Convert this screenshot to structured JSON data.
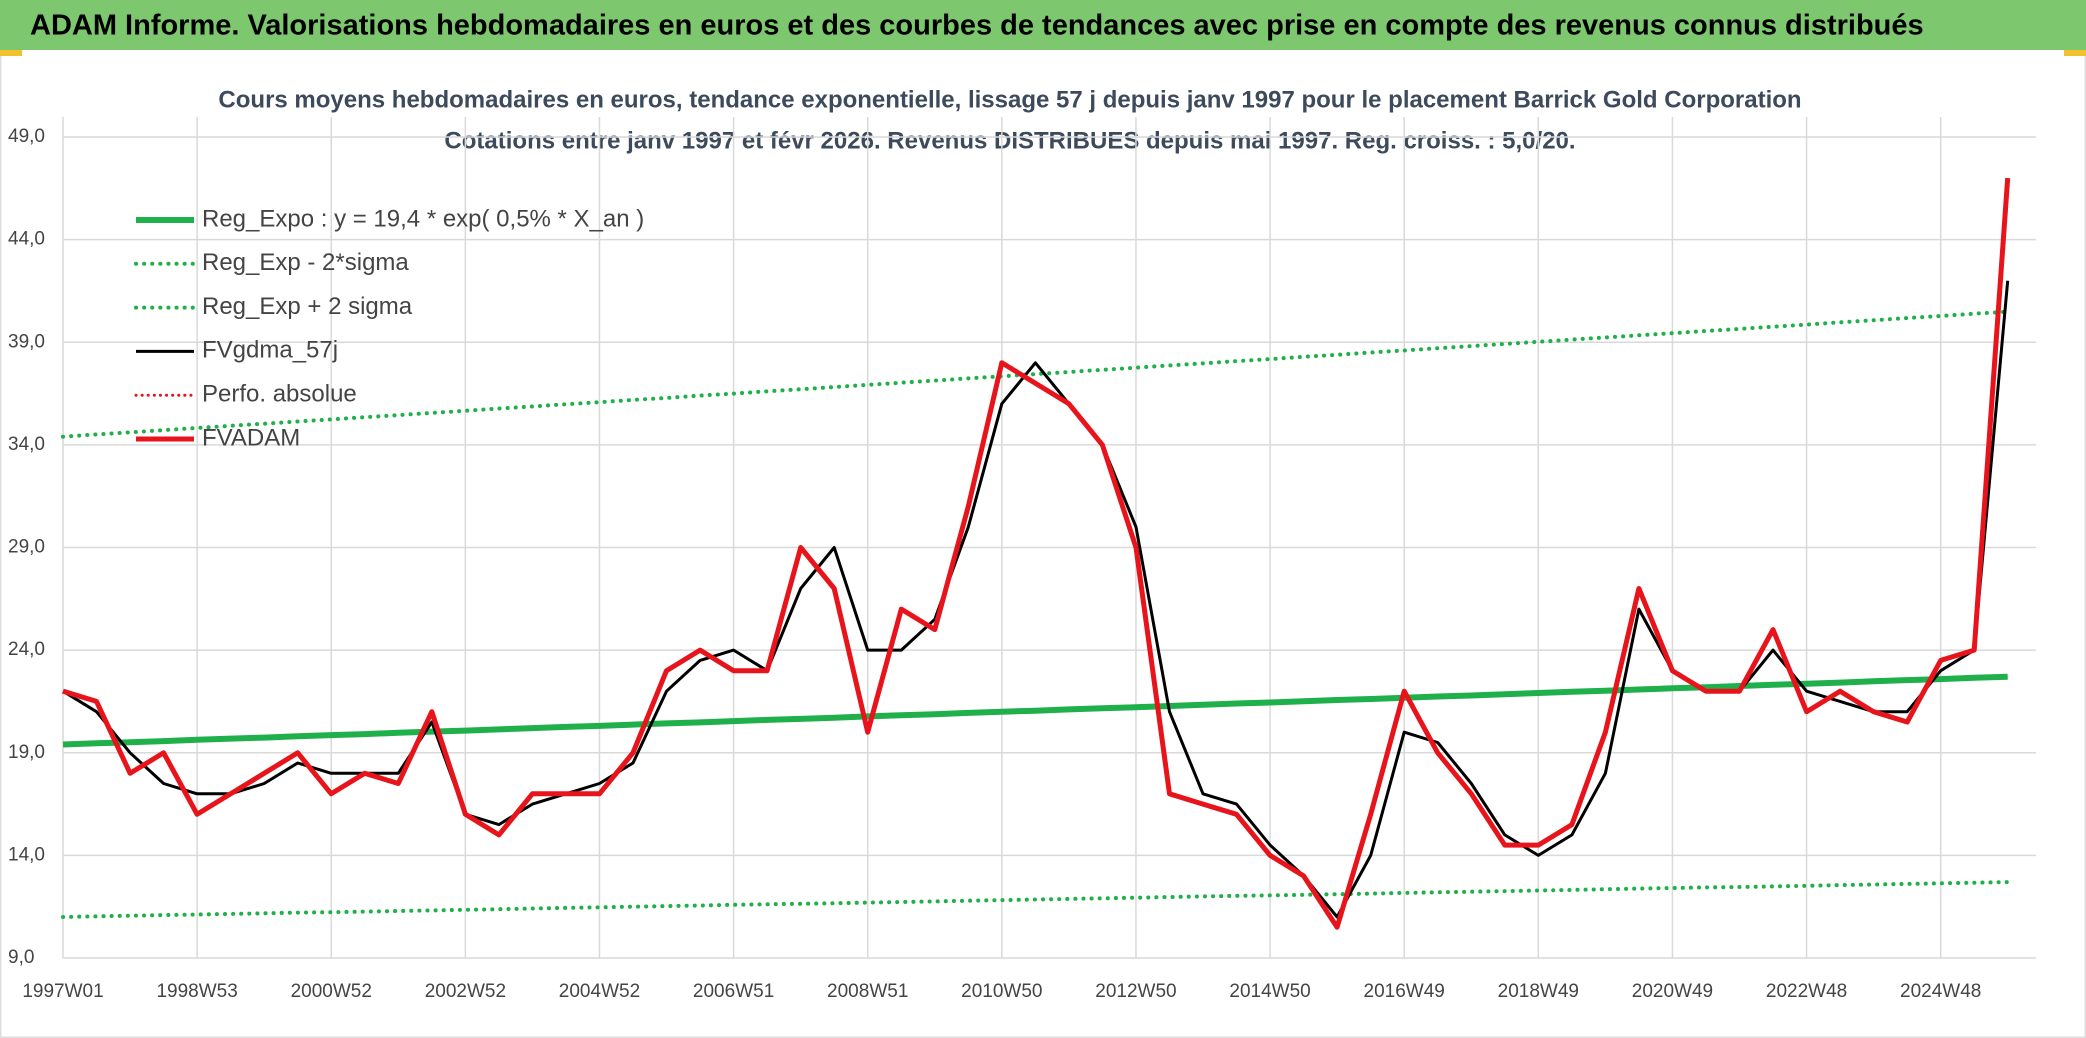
{
  "header": {
    "title": "ADAM Informe. Valorisations hebdomadaires en euros et des courbes de tendances avec prise en compte des revenus connus distribués"
  },
  "chart_data": {
    "type": "line",
    "title": "Cours moyens hebdomadaires en euros, tendance exponentielle, lissage 57 j depuis janv 1997 pour le placement Barrick Gold Corporation",
    "subtitle": "Cotations entre janv 1997 et févr 2026. Revenus DISTRIBUES depuis mai 1997. Reg. croiss. : 5,0/20.",
    "categories": [
      "1997W01",
      null,
      null,
      null,
      "1998W53",
      null,
      null,
      null,
      "2000W52",
      null,
      null,
      null,
      "2002W52",
      null,
      null,
      null,
      "2004W52",
      null,
      null,
      null,
      "2006W51",
      null,
      null,
      null,
      "2008W51",
      null,
      null,
      null,
      "2010W50",
      null,
      null,
      null,
      "2012W50",
      null,
      null,
      null,
      "2014W50",
      null,
      null,
      null,
      "2016W49",
      null,
      null,
      null,
      "2018W49",
      null,
      null,
      null,
      "2020W49",
      null,
      null,
      null,
      "2022W48",
      null,
      null,
      null,
      "2024W48",
      null,
      null
    ],
    "ylim": [
      9,
      49
    ],
    "yticks": [
      {
        "value": 9,
        "label": "9,0"
      },
      {
        "value": 14,
        "label": "14,0"
      },
      {
        "value": 19,
        "label": "19,0"
      },
      {
        "value": 24,
        "label": "24,0"
      },
      {
        "value": 29,
        "label": "29,0"
      },
      {
        "value": 34,
        "label": "34,0"
      },
      {
        "value": 39,
        "label": "39,0"
      },
      {
        "value": 44,
        "label": "44,0"
      },
      {
        "value": 49,
        "label": "49,0"
      }
    ],
    "grid": true,
    "legend": "upper left",
    "series": [
      {
        "name": "Reg_Expo : y = 19,4 * exp( 0,5% *  X_an )",
        "color": "#1fb04b",
        "style": "solid",
        "width": 6,
        "values": [
          19.4,
          19.46,
          19.51,
          19.57,
          19.63,
          19.69,
          19.74,
          19.8,
          19.86,
          19.91,
          19.97,
          20.03,
          20.08,
          20.14,
          20.2,
          20.26,
          20.31,
          20.37,
          20.43,
          20.48,
          20.54,
          20.6,
          20.65,
          20.71,
          20.77,
          20.83,
          20.88,
          20.94,
          21.0,
          21.05,
          21.11,
          21.17,
          21.22,
          21.28,
          21.34,
          21.4,
          21.45,
          21.51,
          21.57,
          21.62,
          21.68,
          21.74,
          21.79,
          21.85,
          21.91,
          21.97,
          22.02,
          22.08,
          22.14,
          22.19,
          22.25,
          22.31,
          22.36,
          22.42,
          22.48,
          22.54,
          22.59,
          22.65,
          22.7
        ]
      },
      {
        "name": "Reg_Exp - 2*sigma",
        "color": "#1fb04b",
        "style": "dotted",
        "width": 4,
        "values": [
          11.0,
          11.03,
          11.06,
          11.09,
          11.12,
          11.15,
          11.18,
          11.21,
          11.23,
          11.26,
          11.29,
          11.32,
          11.35,
          11.38,
          11.41,
          11.44,
          11.47,
          11.5,
          11.53,
          11.56,
          11.59,
          11.62,
          11.64,
          11.67,
          11.7,
          11.73,
          11.76,
          11.79,
          11.82,
          11.85,
          11.88,
          11.91,
          11.94,
          11.97,
          12.0,
          12.03,
          12.05,
          12.08,
          12.11,
          12.14,
          12.17,
          12.2,
          12.23,
          12.26,
          12.29,
          12.32,
          12.35,
          12.38,
          12.41,
          12.44,
          12.46,
          12.49,
          12.52,
          12.55,
          12.58,
          12.61,
          12.64,
          12.67,
          12.7
        ]
      },
      {
        "name": "Reg_Exp + 2 sigma",
        "color": "#1fb04b",
        "style": "dotted",
        "width": 4,
        "values": [
          34.4,
          34.51,
          34.61,
          34.72,
          34.82,
          34.93,
          35.03,
          35.14,
          35.24,
          35.35,
          35.45,
          35.56,
          35.66,
          35.77,
          35.87,
          35.98,
          36.08,
          36.19,
          36.29,
          36.4,
          36.5,
          36.61,
          36.71,
          36.82,
          36.92,
          37.03,
          37.13,
          37.24,
          37.34,
          37.45,
          37.55,
          37.66,
          37.76,
          37.87,
          37.97,
          38.08,
          38.18,
          38.29,
          38.39,
          38.5,
          38.6,
          38.71,
          38.81,
          38.92,
          39.02,
          39.13,
          39.23,
          39.34,
          39.44,
          39.55,
          39.65,
          39.76,
          39.86,
          39.97,
          40.07,
          40.18,
          40.28,
          40.39,
          40.49
        ]
      },
      {
        "name": "FVgdma_57j",
        "color": "#000000",
        "style": "solid",
        "width": 3,
        "values": [
          22,
          21,
          19,
          17.5,
          17,
          17,
          17.5,
          18.5,
          18,
          18,
          18,
          20.5,
          16,
          15.5,
          16.5,
          17,
          17.5,
          18.5,
          22,
          23.5,
          24,
          23,
          27,
          29,
          24,
          24,
          25.5,
          30,
          36,
          38,
          36,
          34,
          30,
          21,
          17,
          16.5,
          14.5,
          13,
          11,
          14,
          20,
          19.5,
          17.5,
          15,
          14,
          15,
          18,
          26,
          23,
          22,
          22,
          24,
          22,
          21.5,
          21,
          21,
          23,
          24,
          42
        ]
      },
      {
        "name": "Perfo. absolue",
        "color": "#e8141b",
        "style": "dotted",
        "width": 3,
        "values": [
          null,
          null,
          null,
          null,
          null,
          null,
          null,
          null,
          null,
          null,
          null,
          null,
          null,
          null,
          null,
          null,
          null,
          null,
          null,
          null,
          null,
          null,
          null,
          null,
          null,
          null,
          null,
          null,
          null,
          null,
          null,
          null,
          null,
          null,
          null,
          null,
          null,
          null,
          null,
          null,
          null,
          null,
          null,
          null,
          null,
          null,
          null,
          null,
          null,
          null,
          null,
          null,
          null,
          null,
          null,
          null,
          null,
          null,
          null
        ]
      },
      {
        "name": "FVADAM",
        "color": "#e8141b",
        "style": "solid",
        "width": 5,
        "values": [
          22,
          21.5,
          18,
          19,
          16,
          17,
          18,
          19,
          17,
          18,
          17.5,
          21,
          16,
          15,
          17,
          17,
          17,
          19,
          23,
          24,
          23,
          23,
          29,
          27,
          20,
          26,
          25,
          31,
          38,
          37,
          36,
          34,
          29,
          17,
          16.5,
          16,
          14,
          13,
          10.5,
          16,
          22,
          19,
          17,
          14.5,
          14.5,
          15.5,
          20,
          27,
          23,
          22,
          22,
          25,
          21,
          22,
          21,
          20.5,
          23.5,
          24,
          47
        ]
      }
    ]
  }
}
